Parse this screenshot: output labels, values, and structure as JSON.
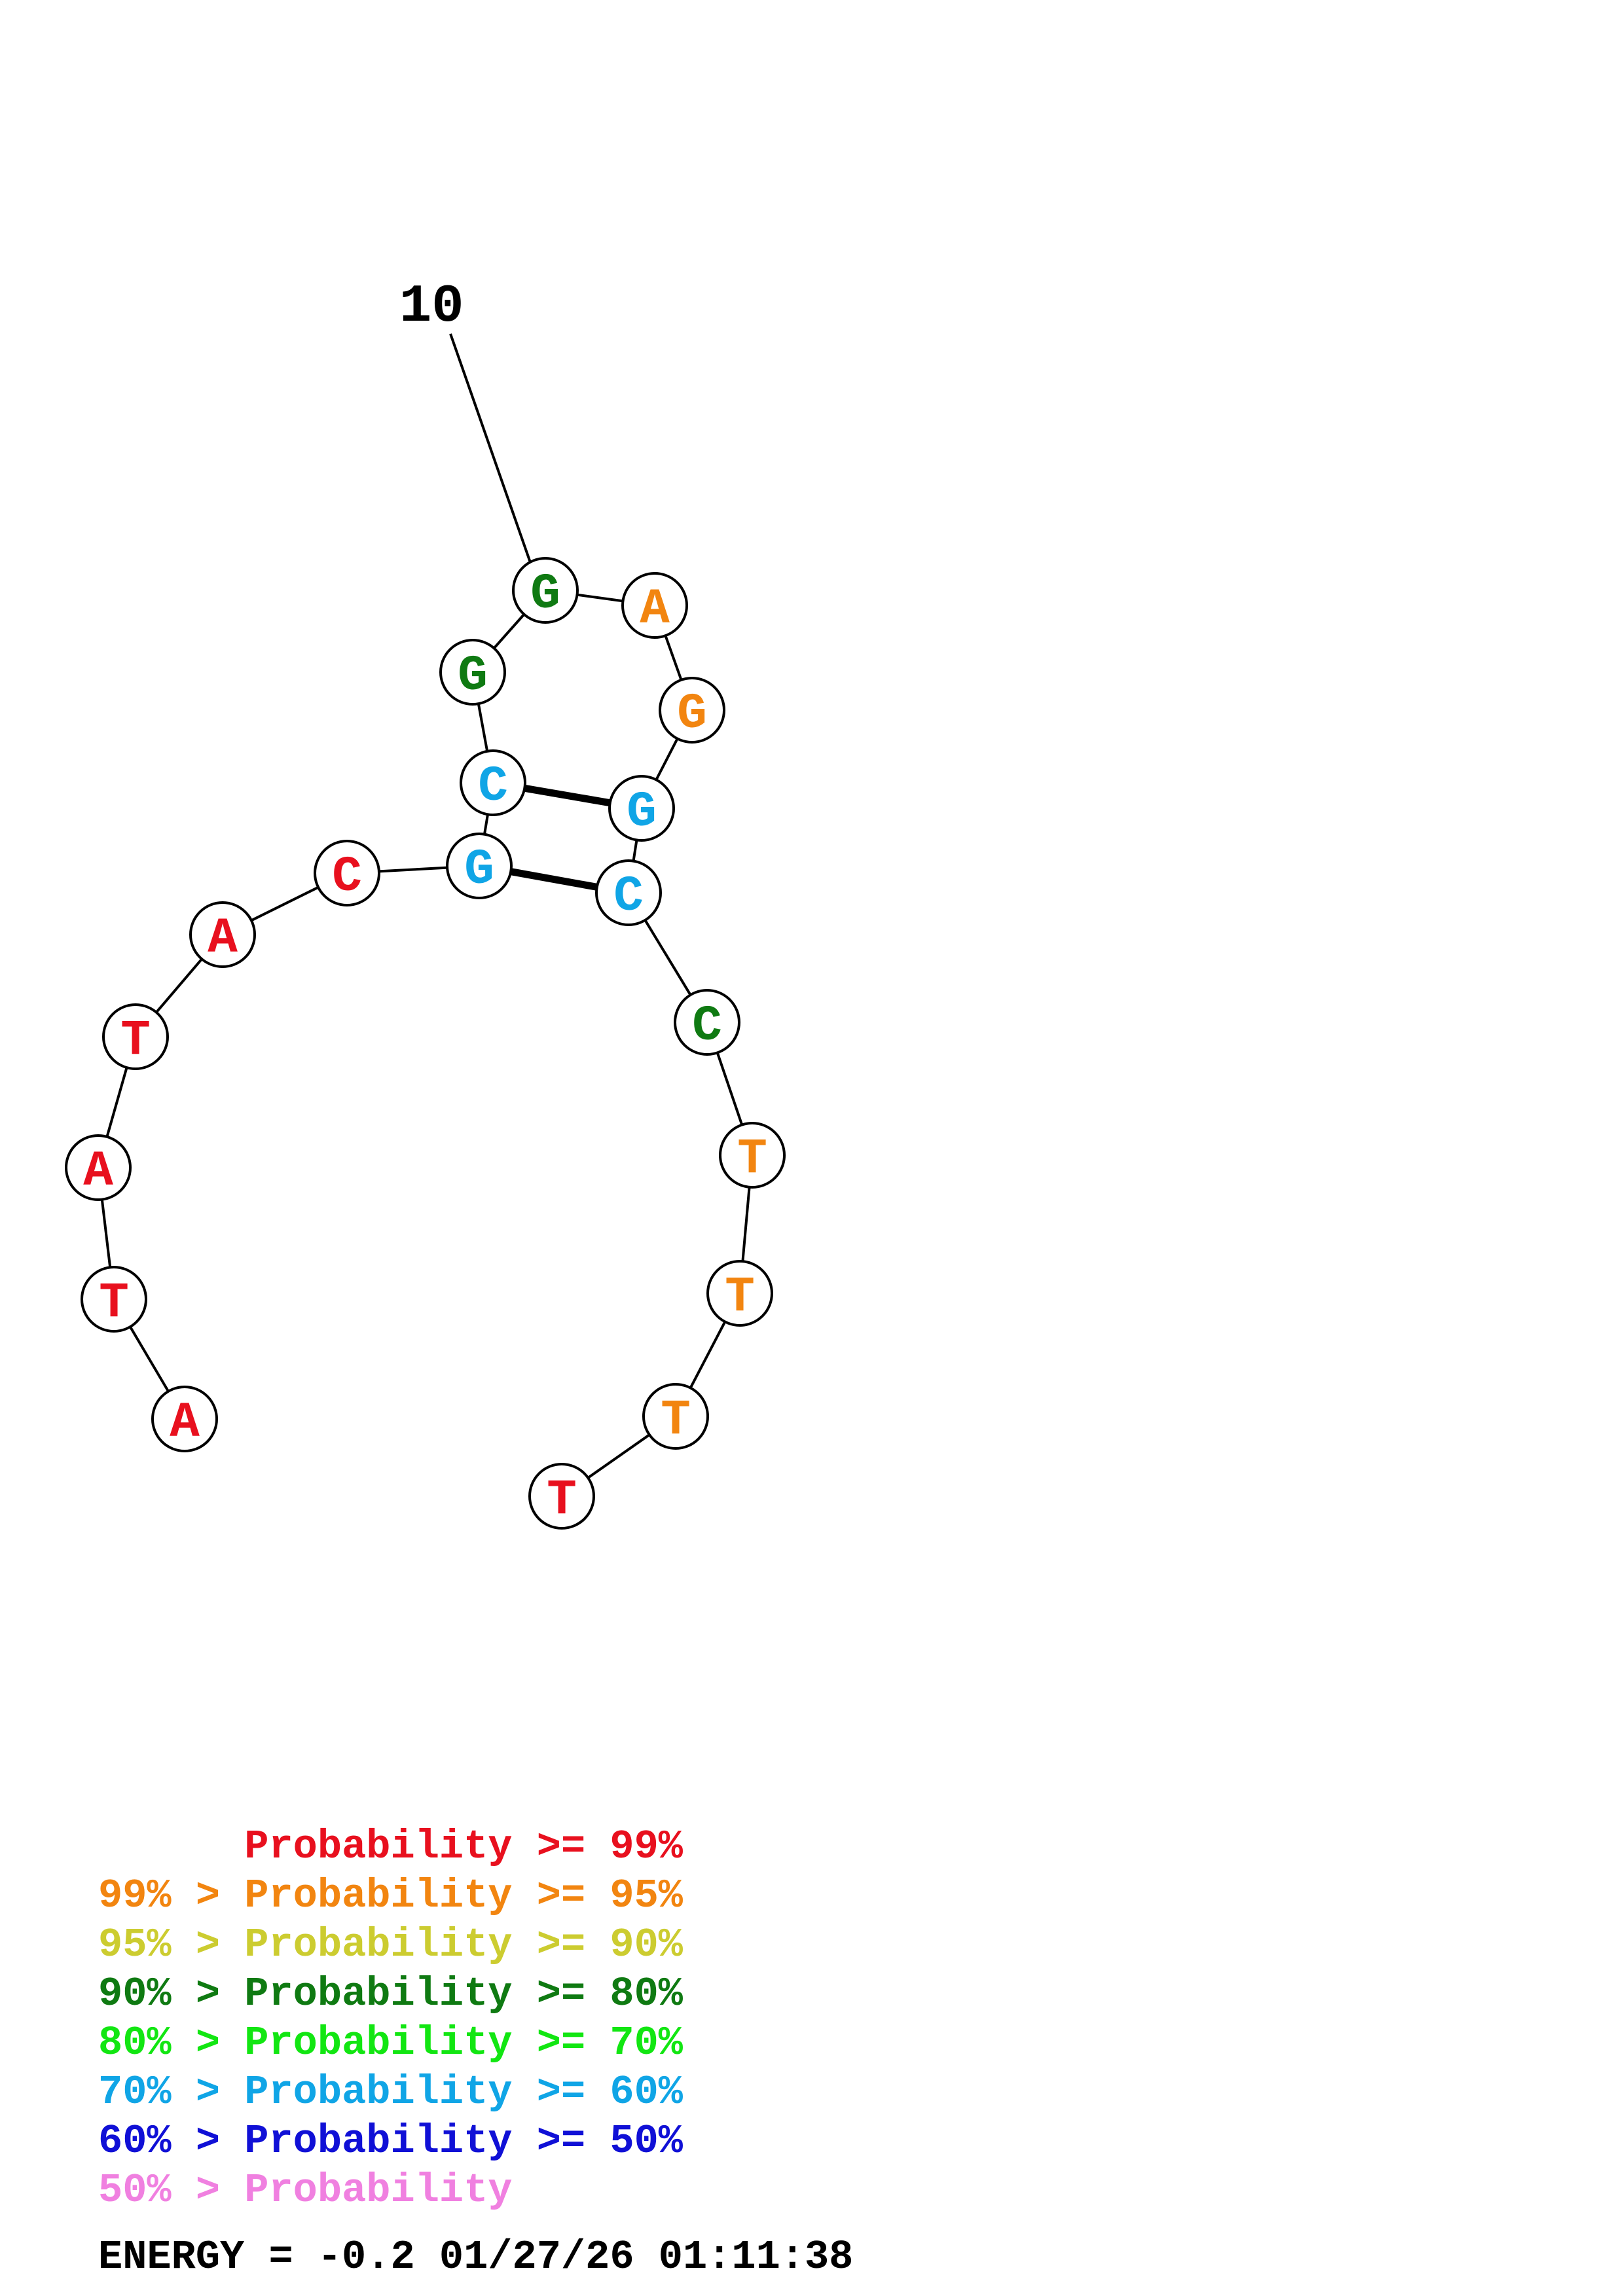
{
  "colors": {
    "p99": "#e8101e",
    "p95": "#f28510",
    "p90": "#cccc30",
    "p80": "#0f7a12",
    "p70": "#12e612",
    "p60": "#10a5e6",
    "p50": "#1010d6",
    "plow": "#f080e0"
  },
  "index_marker": "10",
  "bases": [
    {
      "letter": "A",
      "color": "p99"
    },
    {
      "letter": "T",
      "color": "p99"
    },
    {
      "letter": "A",
      "color": "p99"
    },
    {
      "letter": "T",
      "color": "p99"
    },
    {
      "letter": "A",
      "color": "p99"
    },
    {
      "letter": "C",
      "color": "p99"
    },
    {
      "letter": "G",
      "color": "p60"
    },
    {
      "letter": "C",
      "color": "p60"
    },
    {
      "letter": "G",
      "color": "p80"
    },
    {
      "letter": "G",
      "color": "p80"
    },
    {
      "letter": "A",
      "color": "p95"
    },
    {
      "letter": "G",
      "color": "p95"
    },
    {
      "letter": "G",
      "color": "p60"
    },
    {
      "letter": "C",
      "color": "p60"
    },
    {
      "letter": "C",
      "color": "p80"
    },
    {
      "letter": "T",
      "color": "p95"
    },
    {
      "letter": "T",
      "color": "p95"
    },
    {
      "letter": "T",
      "color": "p95"
    },
    {
      "letter": "T",
      "color": "p99"
    }
  ],
  "pairs": [
    [
      7,
      14
    ],
    [
      8,
      13
    ]
  ],
  "legend": [
    {
      "prefix": "",
      "middle": "Probability",
      "suffix": ">= 99%",
      "color": "p99"
    },
    {
      "prefix": "99% > ",
      "middle": "Probability",
      "suffix": ">= 95%",
      "color": "p95"
    },
    {
      "prefix": "95% > ",
      "middle": "Probability",
      "suffix": ">= 90%",
      "color": "p90"
    },
    {
      "prefix": "90% > ",
      "middle": "Probability",
      "suffix": ">= 80%",
      "color": "p80"
    },
    {
      "prefix": "80% > ",
      "middle": "Probability",
      "suffix": ">= 70%",
      "color": "p70"
    },
    {
      "prefix": "70% > ",
      "middle": "Probability",
      "suffix": ">= 60%",
      "color": "p60"
    },
    {
      "prefix": "60% > ",
      "middle": "Probability",
      "suffix": ">= 50%",
      "color": "p50"
    },
    {
      "prefix": "50% > ",
      "middle": "Probability",
      "suffix": "",
      "color": "plow"
    }
  ],
  "energy_text": "ENERGY = -0.2  01/27/26 01:11:38"
}
